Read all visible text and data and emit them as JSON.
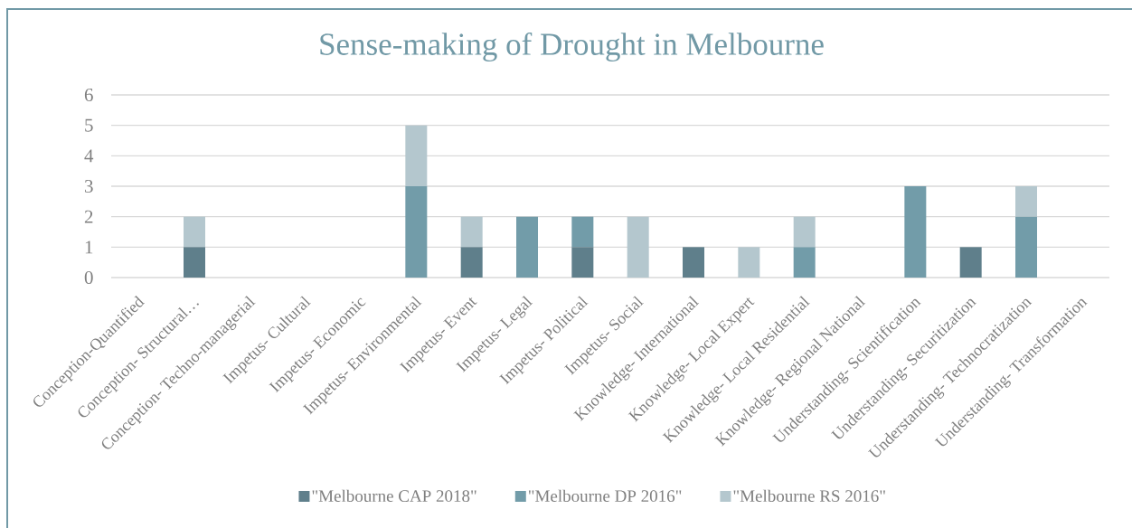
{
  "chart_data": {
    "type": "bar",
    "title": "Sense-making of Drought in Melbourne",
    "categories": [
      "Conception-Quantified",
      "Conception- Structural…",
      "Conception- Techno-managerial",
      "Impetus- Cultural",
      "Impetus- Economic",
      "Impetus- Environmental",
      "Impetus- Event",
      "Impetus- Legal",
      "Impetus- Political",
      "Impetus- Social",
      "Knowledge- International",
      "Knowledge- Local Expert",
      "Knowledge- Local Residential",
      "Knowledge- Regional National",
      "Understanding- Scientification",
      "Understanding- Securitization",
      "Understanding- Technocratization",
      "Understanding- Transformation"
    ],
    "stacked": true,
    "series": [
      {
        "name": "\"Melbourne CAP 2018\"",
        "color": "#5f7f8b",
        "values": [
          0,
          1,
          0,
          0,
          0,
          0,
          1,
          0,
          1,
          0,
          1,
          0,
          0,
          0,
          0,
          1,
          0,
          0
        ]
      },
      {
        "name": "\"Melbourne DP 2016\"",
        "color": "#729ca9",
        "values": [
          0,
          0,
          0,
          0,
          0,
          3,
          0,
          2,
          1,
          0,
          0,
          0,
          1,
          0,
          3,
          0,
          2,
          0
        ]
      },
      {
        "name": "\"Melbourne RS 2016\"",
        "color": "#b4c7ce",
        "values": [
          0,
          1,
          0,
          0,
          0,
          2,
          1,
          0,
          0,
          2,
          0,
          1,
          1,
          0,
          0,
          0,
          1,
          0
        ]
      }
    ],
    "ylim": [
      0,
      6
    ],
    "yticks": [
      0,
      1,
      2,
      3,
      4,
      5,
      6
    ],
    "grid": "y",
    "legend": "bottom"
  }
}
